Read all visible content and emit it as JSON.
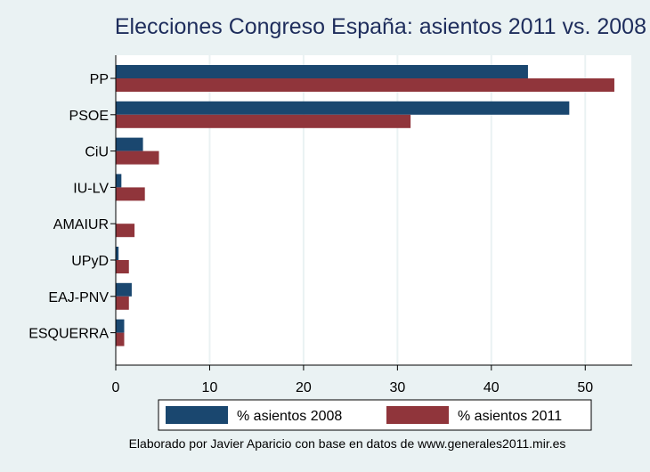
{
  "chart_data": {
    "type": "bar",
    "orientation": "horizontal",
    "title": "Elecciones Congreso España: asientos 2011 vs. 2008",
    "categories": [
      "PP",
      "PSOE",
      "CiU",
      "IU-LV",
      "AMAIUR",
      "UPyD",
      "EAJ-PNV",
      "ESQUERRA"
    ],
    "series": [
      {
        "name": "% asientos 2008",
        "color": "#1a476f",
        "values": [
          43.9,
          48.3,
          2.9,
          0.6,
          0,
          0.3,
          1.7,
          0.9
        ]
      },
      {
        "name": "% asientos 2011",
        "color": "#90353b",
        "values": [
          53.1,
          31.4,
          4.6,
          3.1,
          2.0,
          1.4,
          1.4,
          0.9
        ]
      }
    ],
    "xlim": [
      0,
      55
    ],
    "xticks": [
      0,
      10,
      20,
      30,
      40,
      50
    ],
    "grid": true,
    "legend_position": "bottom",
    "note": "Elaborado por Javier Aparicio con base en datos de www.generales2011.mir.es"
  }
}
